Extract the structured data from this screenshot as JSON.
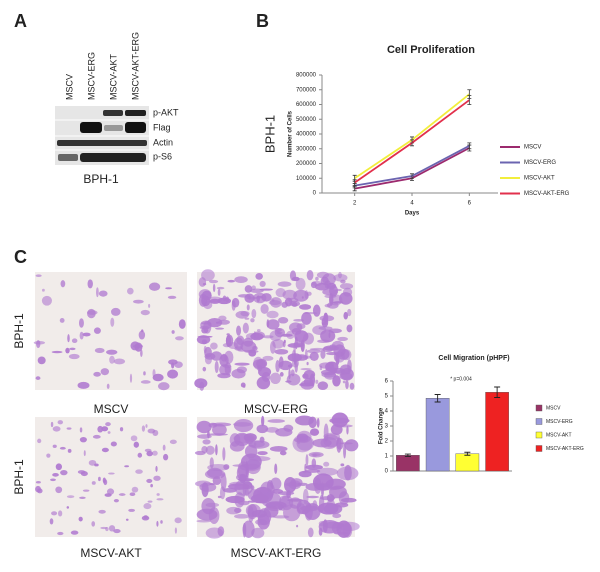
{
  "panel_labels": [
    "A",
    "B",
    "C"
  ],
  "blot": {
    "lanes": [
      "MSCV",
      "MSCV-ERG",
      "MSCV-AKT",
      "MSCV-AKT-ERG"
    ],
    "rows": [
      "p-AKT",
      "Flag",
      "Actin",
      "p-S6"
    ],
    "cell_line": "BPH-1"
  },
  "proliferation_side_label": "BPH-1",
  "migration_images": {
    "row_labels": [
      "BPH-1",
      "BPH-1"
    ],
    "captions": [
      "MSCV",
      "MSCV-ERG",
      "MSCV-AKT",
      "MSCV-AKT-ERG"
    ]
  },
  "chart_data": [
    {
      "type": "line",
      "title": "Cell Proliferation",
      "x_label": "Days",
      "y_label": "Number of Cells",
      "x": [
        2,
        4,
        6
      ],
      "xlim": [
        1,
        7
      ],
      "xticks": [
        2,
        4,
        6
      ],
      "ylim": [
        0,
        800000
      ],
      "yticks": [
        0,
        100000,
        200000,
        300000,
        400000,
        500000,
        600000,
        700000,
        800000
      ],
      "series": [
        {
          "name": "MSCV",
          "color": "#9c2a6e",
          "values": [
            30000,
            100000,
            305000
          ],
          "errors": [
            15000,
            15000,
            20000
          ]
        },
        {
          "name": "MSCV-ERG",
          "color": "#6b64b0",
          "values": [
            50000,
            115000,
            320000
          ],
          "errors": [
            15000,
            15000,
            20000
          ]
        },
        {
          "name": "MSCV-AKT",
          "color": "#f2ee3c",
          "values": [
            100000,
            360000,
            670000
          ],
          "errors": [
            20000,
            20000,
            30000
          ]
        },
        {
          "name": "MSCV-AKT-ERG",
          "color": "#e2304c",
          "values": [
            70000,
            340000,
            630000
          ],
          "errors": [
            20000,
            20000,
            30000
          ]
        }
      ]
    },
    {
      "type": "bar",
      "title": "Cell Migration (pHPF)",
      "y_label": "Fold Change",
      "annotation": "* p=0.004",
      "ylim": [
        0,
        6
      ],
      "yticks": [
        0,
        1,
        2,
        3,
        4,
        5,
        6
      ],
      "series": [
        {
          "name": "MSCV",
          "color": "#993366",
          "values": [
            1.05
          ],
          "errors": [
            0.08
          ]
        },
        {
          "name": "MSCV-ERG",
          "color": "#9999dd",
          "values": [
            4.85
          ],
          "errors": [
            0.25
          ]
        },
        {
          "name": "MSCV-AKT",
          "color": "#ffff33",
          "values": [
            1.15
          ],
          "errors": [
            0.1
          ]
        },
        {
          "name": "MSCV-AKT-ERG",
          "color": "#ee2222",
          "values": [
            5.25
          ],
          "errors": [
            0.35
          ]
        }
      ]
    }
  ]
}
